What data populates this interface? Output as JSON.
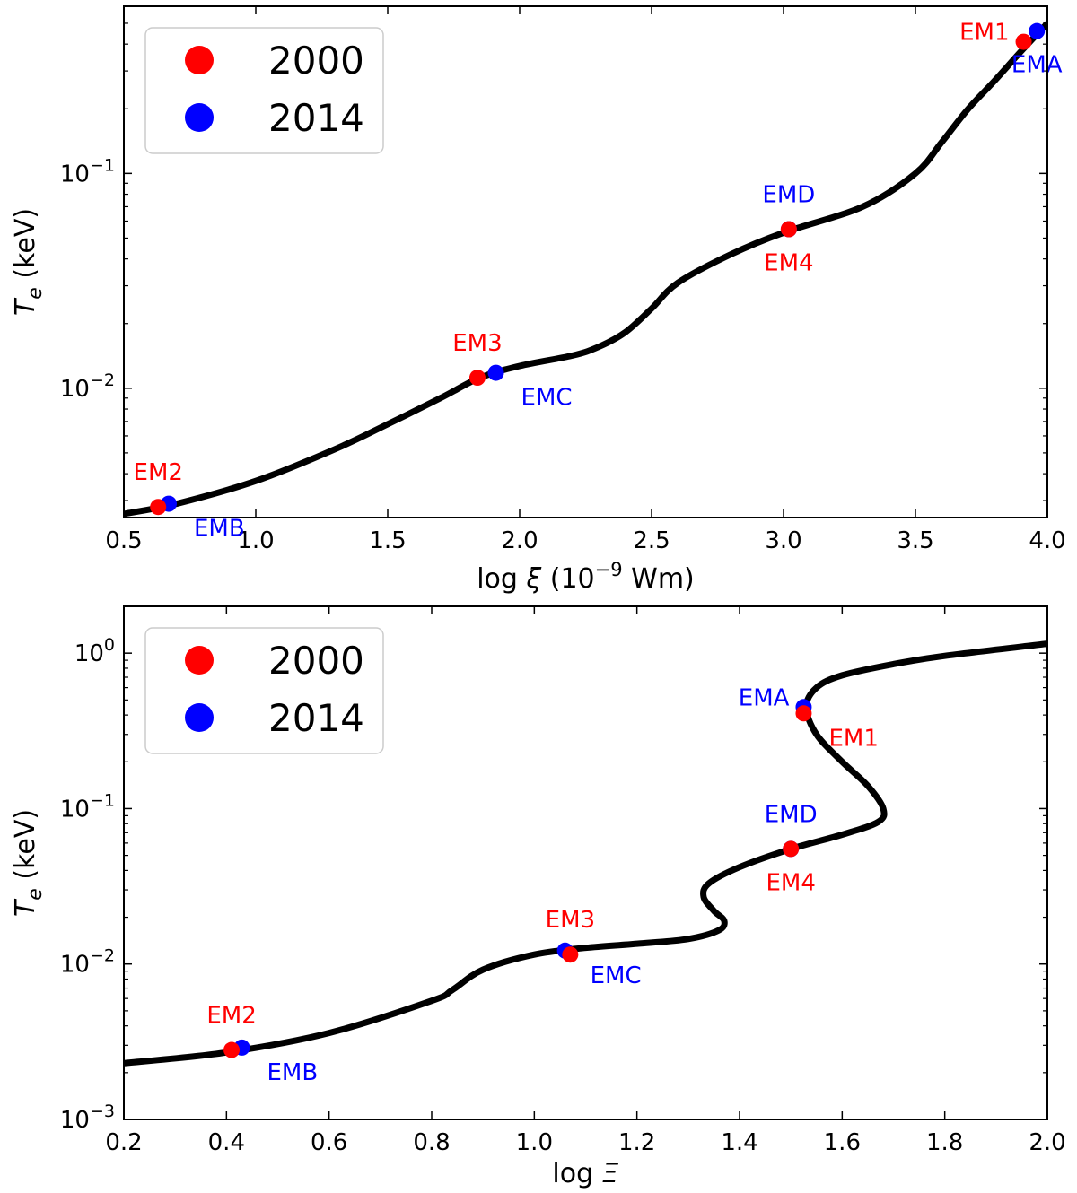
{
  "colors": {
    "red": "#ff0000",
    "blue": "#0000ff",
    "curve": "#000000"
  },
  "chart_data": [
    {
      "type": "line",
      "xlabel_prefix": "log ",
      "xlabel_symbol": "ξ",
      "xlabel_units_pre": " (10",
      "xlabel_units_exp": "−9",
      "xlabel_units_post": " Wm)",
      "ylabel_symbol": "T",
      "ylabel_sub": "e",
      "ylabel_units": " (keV)",
      "xlim": [
        0.5,
        4.0
      ],
      "ylim": [
        0.0025,
        0.6
      ],
      "yscale": "log",
      "legend_placement": "top-left",
      "xticks": [
        0.5,
        1.0,
        1.5,
        2.0,
        2.5,
        3.0,
        3.5,
        4.0
      ],
      "xtick_labels": [
        "0.5",
        "1.0",
        "1.5",
        "2.0",
        "2.5",
        "3.0",
        "3.5",
        "4.0"
      ],
      "yticks": [
        {
          "value": 0.1,
          "base": "10",
          "exp": "−1"
        },
        {
          "value": 0.01,
          "base": "10",
          "exp": "−2"
        }
      ],
      "legend": [
        {
          "label": "2000",
          "color": "red"
        },
        {
          "label": "2014",
          "color": "blue"
        }
      ],
      "curve": {
        "name": "",
        "x": [
          0.5,
          0.7,
          1.0,
          1.3,
          1.5,
          1.7,
          1.85,
          2.0,
          2.2,
          2.3,
          2.4,
          2.5,
          2.6,
          2.8,
          3.0,
          3.3,
          3.5,
          3.6,
          3.7,
          3.8,
          3.9,
          4.0
        ],
        "y": [
          0.0026,
          0.0029,
          0.0037,
          0.0052,
          0.0068,
          0.009,
          0.0112,
          0.0127,
          0.0142,
          0.0156,
          0.0182,
          0.0235,
          0.031,
          0.042,
          0.053,
          0.07,
          0.1,
          0.14,
          0.2,
          0.27,
          0.37,
          0.5
        ]
      },
      "points": [
        {
          "label": "EM1",
          "series": "2000",
          "x": 3.91,
          "y": 0.41,
          "label_pos": "left"
        },
        {
          "label": "EMA",
          "series": "2014",
          "x": 3.96,
          "y": 0.46,
          "label_pos": "below"
        },
        {
          "label": "EMD",
          "series": "2014",
          "x": 3.02,
          "y": 0.055,
          "label_pos": "above"
        },
        {
          "label": "EM4",
          "series": "2000",
          "x": 3.02,
          "y": 0.055,
          "label_pos": "below"
        },
        {
          "label": "EM3",
          "series": "2000",
          "x": 1.84,
          "y": 0.0112,
          "label_pos": "above"
        },
        {
          "label": "EMC",
          "series": "2014",
          "x": 1.91,
          "y": 0.0118,
          "label_pos": "below-right"
        },
        {
          "label": "EM2",
          "series": "2000",
          "x": 0.63,
          "y": 0.0028,
          "label_pos": "above"
        },
        {
          "label": "EMB",
          "series": "2014",
          "x": 0.67,
          "y": 0.0029,
          "label_pos": "below-right"
        }
      ]
    },
    {
      "type": "line",
      "xlabel_prefix": "log ",
      "xlabel_symbol": "Ξ",
      "ylabel_symbol": "T",
      "ylabel_sub": "e",
      "ylabel_units": " (keV)",
      "xlim": [
        0.2,
        2.0
      ],
      "ylim": [
        0.001,
        2.0
      ],
      "yscale": "log",
      "legend_placement": "top-left",
      "xticks": [
        0.2,
        0.4,
        0.6,
        0.8,
        1.0,
        1.2,
        1.4,
        1.6,
        1.8,
        2.0
      ],
      "xtick_labels": [
        "0.2",
        "0.4",
        "0.6",
        "0.8",
        "1.0",
        "1.2",
        "1.4",
        "1.6",
        "1.8",
        "2.0"
      ],
      "yticks": [
        {
          "value": 1,
          "base": "10",
          "exp": "0"
        },
        {
          "value": 0.1,
          "base": "10",
          "exp": "−1"
        },
        {
          "value": 0.01,
          "base": "10",
          "exp": "−2"
        },
        {
          "value": 0.001,
          "base": "10",
          "exp": "−3"
        }
      ],
      "legend": [
        {
          "label": "2000",
          "color": "red"
        },
        {
          "label": "2014",
          "color": "blue"
        }
      ],
      "curve": {
        "name": "",
        "x": [
          0.2,
          0.4,
          0.6,
          0.8,
          0.84,
          0.9,
          1.0,
          1.1,
          1.2,
          1.3,
          1.36,
          1.37,
          1.35,
          1.33,
          1.34,
          1.4,
          1.5,
          1.6,
          1.67,
          1.68,
          1.65,
          1.6,
          1.55,
          1.53,
          1.55,
          1.6,
          1.7,
          1.8,
          2.0
        ],
        "y": [
          0.0023,
          0.0027,
          0.0036,
          0.0058,
          0.0068,
          0.0092,
          0.0115,
          0.0127,
          0.0135,
          0.0145,
          0.0165,
          0.019,
          0.022,
          0.027,
          0.033,
          0.042,
          0.055,
          0.068,
          0.082,
          0.1,
          0.14,
          0.2,
          0.3,
          0.45,
          0.6,
          0.72,
          0.85,
          0.96,
          1.15
        ]
      },
      "points": [
        {
          "label": "EMA",
          "series": "2014",
          "x": 1.525,
          "y": 0.45,
          "label_pos": "left"
        },
        {
          "label": "EM1",
          "series": "2000",
          "x": 1.525,
          "y": 0.41,
          "label_pos": "below-right"
        },
        {
          "label": "EMD",
          "series": "2014",
          "x": 1.5,
          "y": 0.055,
          "label_pos": "above"
        },
        {
          "label": "EM4",
          "series": "2000",
          "x": 1.5,
          "y": 0.055,
          "label_pos": "below"
        },
        {
          "label": "EM3",
          "series": "2000",
          "x": 1.07,
          "y": 0.0115,
          "label_pos": "above"
        },
        {
          "label": "EMC",
          "series": "2014",
          "x": 1.06,
          "y": 0.0122,
          "label_pos": "below-right"
        },
        {
          "label": "EM2",
          "series": "2000",
          "x": 0.41,
          "y": 0.0028,
          "label_pos": "above"
        },
        {
          "label": "EMB",
          "series": "2014",
          "x": 0.43,
          "y": 0.0029,
          "label_pos": "below-right"
        }
      ]
    }
  ]
}
